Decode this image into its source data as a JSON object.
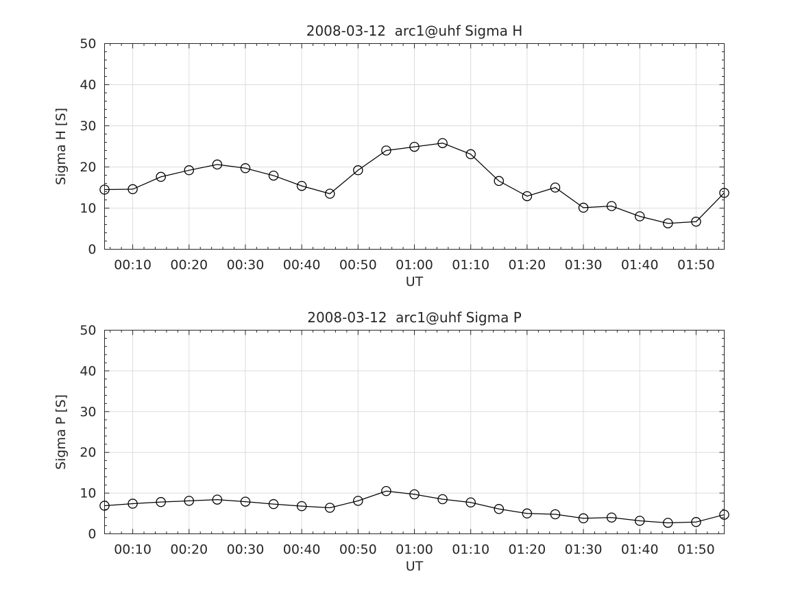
{
  "figure": {
    "background": "#ffffff",
    "text_color": "#262626",
    "axis_color": "#262626",
    "grid_color": "#dcdcdc",
    "line_color": "#000000",
    "marker": "open-circle"
  },
  "chart_data": [
    {
      "type": "line",
      "title": "2008-03-12  arc1@uhf Sigma H",
      "xlabel": "UT",
      "ylabel": "Sigma H [S]",
      "legend": null,
      "grid": true,
      "ylim": [
        0,
        50
      ],
      "yticks": [
        0,
        10,
        20,
        30,
        40,
        50
      ],
      "xlim_minutes": [
        5,
        115
      ],
      "xtick_minutes": [
        10,
        20,
        30,
        40,
        50,
        60,
        70,
        80,
        90,
        100,
        110
      ],
      "xtick_labels": [
        "00:10",
        "00:20",
        "00:30",
        "00:40",
        "00:50",
        "01:00",
        "01:10",
        "01:20",
        "01:30",
        "01:40",
        "01:50"
      ],
      "minor_x_step_minutes": 2,
      "minor_y_step": 2,
      "x": [
        "00:05",
        "00:10",
        "00:15",
        "00:20",
        "00:25",
        "00:30",
        "00:35",
        "00:40",
        "00:45",
        "00:50",
        "00:55",
        "01:00",
        "01:05",
        "01:10",
        "01:15",
        "01:20",
        "01:25",
        "01:30",
        "01:35",
        "01:40",
        "01:45",
        "01:50",
        "01:55"
      ],
      "x_minutes": [
        5,
        10,
        15,
        20,
        25,
        30,
        35,
        40,
        45,
        50,
        55,
        60,
        65,
        70,
        75,
        80,
        85,
        90,
        95,
        100,
        105,
        110,
        115
      ],
      "values": [
        14.5,
        14.6,
        17.6,
        19.2,
        20.6,
        19.7,
        17.9,
        15.4,
        13.5,
        19.2,
        24.0,
        24.9,
        25.8,
        23.1,
        16.6,
        12.9,
        15.0,
        10.1,
        10.5,
        8.0,
        6.3,
        6.7,
        13.7
      ]
    },
    {
      "type": "line",
      "title": "2008-03-12  arc1@uhf Sigma P",
      "xlabel": "UT",
      "ylabel": "Sigma P [S]",
      "legend": null,
      "grid": true,
      "ylim": [
        0,
        50
      ],
      "yticks": [
        0,
        10,
        20,
        30,
        40,
        50
      ],
      "xlim_minutes": [
        5,
        115
      ],
      "xtick_minutes": [
        10,
        20,
        30,
        40,
        50,
        60,
        70,
        80,
        90,
        100,
        110
      ],
      "xtick_labels": [
        "00:10",
        "00:20",
        "00:30",
        "00:40",
        "00:50",
        "01:00",
        "01:10",
        "01:20",
        "01:30",
        "01:40",
        "01:50"
      ],
      "minor_x_step_minutes": 2,
      "minor_y_step": 2,
      "x": [
        "00:05",
        "00:10",
        "00:15",
        "00:20",
        "00:25",
        "00:30",
        "00:35",
        "00:40",
        "00:45",
        "00:50",
        "00:55",
        "01:00",
        "01:05",
        "01:10",
        "01:15",
        "01:20",
        "01:25",
        "01:30",
        "01:35",
        "01:40",
        "01:45",
        "01:50",
        "01:55"
      ],
      "x_minutes": [
        5,
        10,
        15,
        20,
        25,
        30,
        35,
        40,
        45,
        50,
        55,
        60,
        65,
        70,
        75,
        80,
        85,
        90,
        95,
        100,
        105,
        110,
        115
      ],
      "values": [
        6.9,
        7.4,
        7.8,
        8.1,
        8.4,
        7.9,
        7.3,
        6.8,
        6.4,
        8.1,
        10.5,
        9.7,
        8.5,
        7.7,
        6.1,
        5.0,
        4.8,
        3.8,
        4.0,
        3.2,
        2.7,
        2.9,
        4.7
      ]
    }
  ]
}
